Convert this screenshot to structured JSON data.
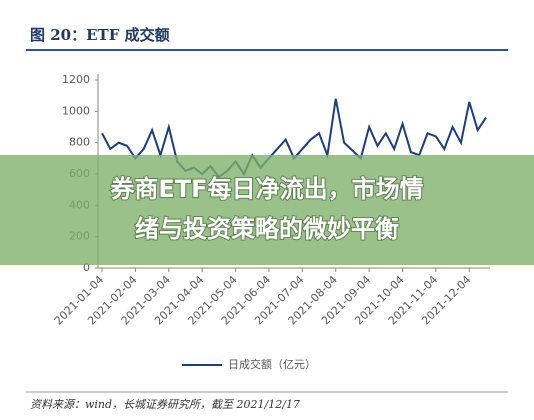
{
  "chart_data": {
    "type": "line",
    "title": "图 20：ETF 成交额",
    "categories": [
      "2021-01-04",
      null,
      null,
      null,
      "2021-02-04",
      null,
      null,
      null,
      "2021-03-04",
      null,
      null,
      null,
      "2021-04-04",
      null,
      null,
      null,
      "2021-05-04",
      null,
      null,
      null,
      "2021-06-04",
      null,
      null,
      null,
      "2021-07-04",
      null,
      null,
      null,
      "2021-08-04",
      null,
      null,
      null,
      "2021-09-04",
      null,
      null,
      null,
      "2021-10-04",
      null,
      null,
      null,
      "2021-11-04",
      null,
      null,
      null,
      "2021-12-04",
      null,
      null
    ],
    "series": [
      {
        "name": "日成交额（亿元）",
        "color": "#1f3d7a",
        "values": [
          860,
          760,
          800,
          780,
          700,
          760,
          880,
          720,
          900,
          680,
          620,
          640,
          600,
          650,
          580,
          620,
          680,
          600,
          720,
          640,
          700,
          760,
          820,
          700,
          760,
          820,
          860,
          720,
          1080,
          800,
          750,
          700,
          900,
          780,
          860,
          760,
          920,
          740,
          720,
          860,
          840,
          760,
          900,
          800,
          1060,
          880,
          960
        ]
      }
    ],
    "ylim": [
      0,
      1200
    ],
    "yticks": [
      0,
      200,
      400,
      600,
      800,
      1000,
      1200
    ],
    "source": "资料来源：wind，长城证券研究所，截至 2021/12/17"
  },
  "overlay": {
    "lines": [
      "券商ETF每日净流出，市场情",
      "绪与投资策略的微妙平衡"
    ]
  }
}
